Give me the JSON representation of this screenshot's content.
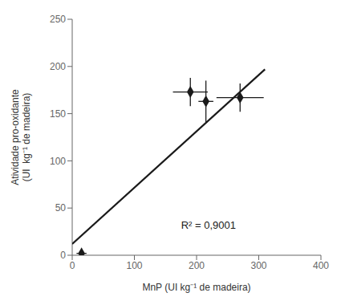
{
  "chart_data": {
    "type": "scatter",
    "x_label": "MnP (UI kg⁻¹ de madeira)",
    "y_label": "Atividade pro-oxidante\n(UI  kg⁻¹ de madeira)",
    "series": [
      {
        "type": "scatter",
        "color": "#1a1a1a",
        "marker": "diamond",
        "x": [
          15,
          190,
          215,
          270
        ],
        "values": [
          2,
          173,
          163,
          167
        ],
        "x_err": [
          8,
          28,
          12,
          38
        ],
        "y_err": [
          1,
          15,
          22,
          15
        ]
      },
      {
        "type": "line",
        "color": "#1a1a1a",
        "line_style": "solid",
        "x": [
          0,
          310
        ],
        "values": [
          12,
          197
        ]
      }
    ],
    "annotations": [
      {
        "text": "R² = 0,9001",
        "x": 175,
        "y": 28
      }
    ],
    "xlim": [
      0,
      400
    ],
    "ylim": [
      0,
      250
    ],
    "xticks": [
      0,
      100,
      200,
      300,
      400
    ],
    "yticks": [
      0,
      50,
      100,
      150,
      200,
      250
    ],
    "grid": false
  }
}
